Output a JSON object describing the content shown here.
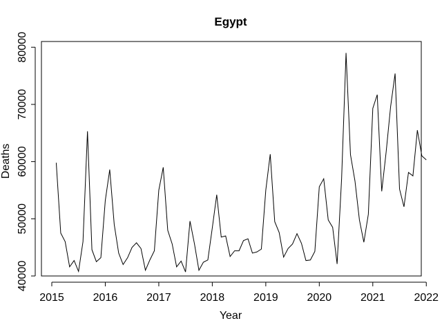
{
  "chart_data": {
    "type": "line",
    "title": "Egypt",
    "xlabel": "Year",
    "ylabel": "Deaths",
    "xlim": [
      2015.0,
      2022.1
    ],
    "ylim": [
      40000,
      81000
    ],
    "x_ticks": [
      2015,
      2016,
      2017,
      2018,
      2019,
      2020,
      2021,
      2022
    ],
    "y_ticks": [
      40000,
      50000,
      60000,
      70000,
      80000
    ],
    "grid": false,
    "legend": "none",
    "series": [
      {
        "line_color": "#000000",
        "x": [
          2015.083,
          2015.167,
          2015.25,
          2015.333,
          2015.417,
          2015.5,
          2015.583,
          2015.667,
          2015.75,
          2015.833,
          2015.917,
          2016.0,
          2016.083,
          2016.167,
          2016.25,
          2016.333,
          2016.417,
          2016.5,
          2016.583,
          2016.667,
          2016.75,
          2016.833,
          2016.917,
          2017.0,
          2017.083,
          2017.167,
          2017.25,
          2017.333,
          2017.417,
          2017.5,
          2017.583,
          2017.667,
          2017.75,
          2017.833,
          2017.917,
          2018.0,
          2018.083,
          2018.167,
          2018.25,
          2018.333,
          2018.417,
          2018.5,
          2018.583,
          2018.667,
          2018.75,
          2018.833,
          2018.917,
          2019.0,
          2019.083,
          2019.167,
          2019.25,
          2019.333,
          2019.417,
          2019.5,
          2019.583,
          2019.667,
          2019.75,
          2019.833,
          2019.917,
          2020.0,
          2020.083,
          2020.167,
          2020.25,
          2020.333,
          2020.417,
          2020.5,
          2020.583,
          2020.667,
          2020.75,
          2020.833,
          2020.917,
          2021.0,
          2021.083,
          2021.167,
          2021.25,
          2021.333,
          2021.417,
          2021.5,
          2021.583,
          2021.667,
          2021.75,
          2021.833,
          2021.917,
          2022.0
        ],
        "values": [
          59800,
          47500,
          46000,
          41600,
          42700,
          40800,
          46000,
          65300,
          44600,
          42500,
          43200,
          53200,
          58600,
          49000,
          44000,
          42000,
          43200,
          45000,
          45800,
          44800,
          41000,
          42800,
          44400,
          55000,
          59000,
          48000,
          45600,
          41600,
          42600,
          40700,
          49600,
          45600,
          41000,
          42400,
          42800,
          48400,
          54200,
          46800,
          47000,
          43400,
          44400,
          44400,
          46200,
          46500,
          44000,
          44200,
          44700,
          55000,
          61300,
          49500,
          47600,
          43300,
          44800,
          45600,
          47400,
          45700,
          42700,
          42800,
          44300,
          55600,
          57000,
          49800,
          48500,
          42100,
          57000,
          79000,
          61200,
          56600,
          49800,
          45900,
          50800,
          69300,
          71700,
          54800,
          61700,
          69600,
          75400,
          55200,
          52100,
          58100,
          57500,
          65500,
          61000,
          60300
        ]
      }
    ]
  }
}
